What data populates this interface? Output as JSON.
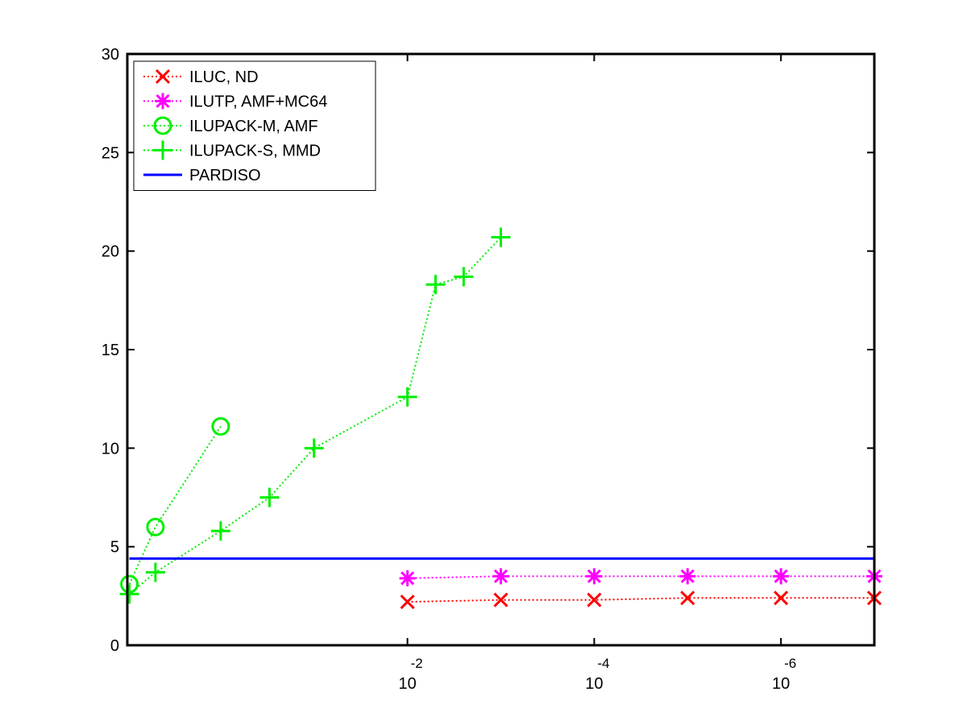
{
  "chart_data": {
    "type": "line",
    "x_scale": "log-reversed",
    "xlim": [
      10,
      1e-07
    ],
    "ylim": [
      0,
      30
    ],
    "x_ticks": [
      {
        "value": 0.01,
        "base": "10",
        "exponent": "-2"
      },
      {
        "value": 0.0001,
        "base": "10",
        "exponent": "-4"
      },
      {
        "value": 1e-06,
        "base": "10",
        "exponent": "-6"
      }
    ],
    "y_ticks": [
      0,
      5,
      10,
      15,
      20,
      25,
      30
    ],
    "y_tick_labels": [
      "0",
      "5",
      "10",
      "15",
      "20",
      "25",
      "30"
    ],
    "grid": false,
    "legend_position": "top-left",
    "series": [
      {
        "name": "ILUC,  ND",
        "color": "#ff0000",
        "marker": "x",
        "line": "dotted",
        "x": [
          0.01,
          0.001,
          0.0001,
          1e-05,
          1e-06,
          1e-07
        ],
        "y": [
          2.2,
          2.3,
          2.3,
          2.4,
          2.4,
          2.4
        ]
      },
      {
        "name": "ILUTP, AMF+MC64",
        "color": "#ff00ff",
        "marker": "asterisk",
        "line": "dotted",
        "x": [
          0.01,
          0.001,
          0.0001,
          1e-05,
          1e-06,
          1e-07
        ],
        "y": [
          3.4,
          3.5,
          3.5,
          3.5,
          3.5,
          3.5
        ]
      },
      {
        "name": "ILUPACK-M, AMF",
        "color": "#00ee00",
        "marker": "circle",
        "line": "dotted",
        "x": [
          9.5,
          5,
          1
        ],
        "y": [
          3.1,
          6.0,
          11.1
        ]
      },
      {
        "name": "ILUPACK-S, MMD",
        "color": "#00ee00",
        "marker": "plus",
        "line": "dotted",
        "x": [
          9.5,
          5,
          1,
          0.3,
          0.1,
          0.01,
          0.005,
          0.0025,
          0.001
        ],
        "y": [
          2.6,
          3.7,
          5.8,
          7.5,
          10.0,
          12.6,
          18.3,
          18.7,
          20.7
        ]
      },
      {
        "name": "PARDISO",
        "color": "#0000ff",
        "marker": "none",
        "line": "solid",
        "x": [
          9.5,
          1e-07
        ],
        "y": [
          4.4,
          4.4
        ]
      }
    ]
  }
}
